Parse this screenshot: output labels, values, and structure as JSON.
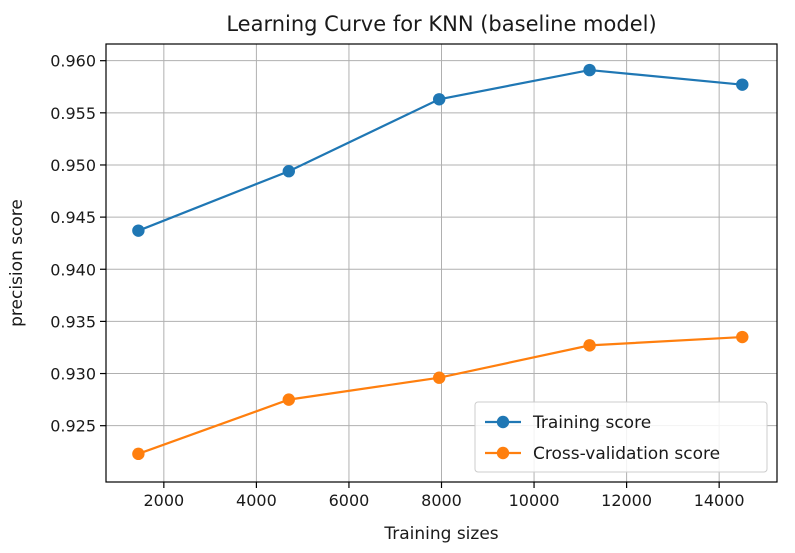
{
  "chart_data": {
    "type": "line",
    "title": "Learning Curve for KNN (baseline model)",
    "xlabel": "Training sizes",
    "ylabel": "precision score",
    "x": [
      1450,
      4700,
      7950,
      11200,
      14500
    ],
    "series": [
      {
        "name": "Training score",
        "color": "#1f77b4",
        "values": [
          0.9437,
          0.9494,
          0.9563,
          0.9591,
          0.9577
        ]
      },
      {
        "name": "Cross-validation score",
        "color": "#ff7f0e",
        "values": [
          0.9223,
          0.9275,
          0.9296,
          0.9327,
          0.9335
        ]
      }
    ],
    "xlim": [
      750,
      15250
    ],
    "ylim": [
      0.9196,
      0.9616
    ],
    "xticks": [
      2000,
      4000,
      6000,
      8000,
      10000,
      12000,
      14000
    ],
    "xtick_labels": [
      "2000",
      "4000",
      "6000",
      "8000",
      "10000",
      "12000",
      "14000"
    ],
    "yticks": [
      0.925,
      0.93,
      0.935,
      0.94,
      0.945,
      0.95,
      0.955,
      0.96
    ],
    "ytick_labels": [
      "0.925",
      "0.930",
      "0.935",
      "0.940",
      "0.945",
      "0.950",
      "0.955",
      "0.960"
    ],
    "grid": true,
    "legend": {
      "location": "lower-right"
    }
  }
}
